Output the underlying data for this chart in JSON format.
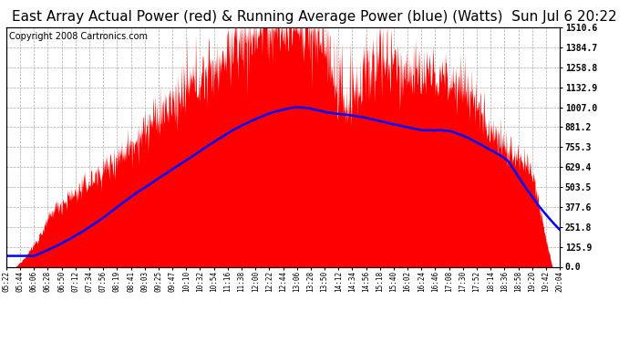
{
  "title": "East Array Actual Power (red) & Running Average Power (blue) (Watts)  Sun Jul 6 20:22",
  "copyright": "Copyright 2008 Cartronics.com",
  "ylabel_right": [
    "1510.6",
    "1384.7",
    "1258.8",
    "1132.9",
    "1007.0",
    "881.2",
    "755.3",
    "629.4",
    "503.5",
    "377.6",
    "251.8",
    "125.9",
    "0.0"
  ],
  "ymax": 1510.6,
  "ymin": 0.0,
  "actual_color": "#FF0000",
  "average_color": "#0000FF",
  "background_color": "#FFFFFF",
  "grid_color": "#AAAAAA",
  "title_fontsize": 11,
  "copyright_fontsize": 7,
  "xtick_labels": [
    "05:22",
    "05:44",
    "06:06",
    "06:28",
    "06:50",
    "07:12",
    "07:34",
    "07:56",
    "08:19",
    "08:41",
    "09:03",
    "09:25",
    "09:47",
    "10:10",
    "10:32",
    "10:54",
    "11:16",
    "11:38",
    "12:00",
    "12:22",
    "12:44",
    "13:06",
    "13:28",
    "13:50",
    "14:12",
    "14:34",
    "14:56",
    "15:18",
    "15:40",
    "16:02",
    "16:24",
    "16:46",
    "17:08",
    "17:30",
    "17:52",
    "18:14",
    "18:36",
    "18:58",
    "19:20",
    "19:42",
    "20:04"
  ]
}
